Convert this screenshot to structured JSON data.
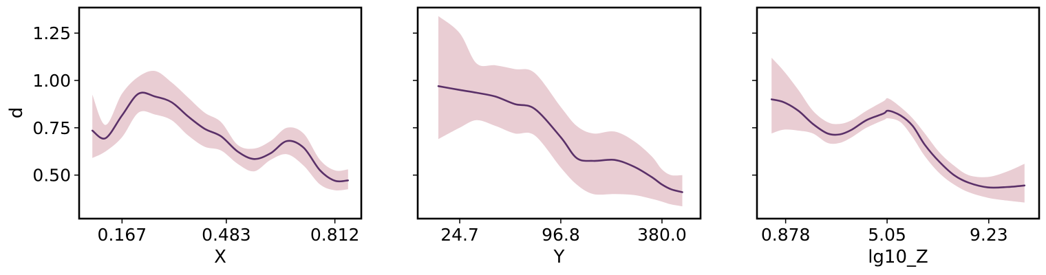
{
  "figure": {
    "ylabel": "d",
    "yticks": [
      "0.50",
      "0.75",
      "1.00",
      "1.25"
    ],
    "ytick_values": [
      0.5,
      0.75,
      1.0,
      1.25
    ],
    "ylim": [
      0.27,
      1.385
    ],
    "line_color": "#5a3068",
    "band_color": "#e9cdd3"
  },
  "chart_data": [
    {
      "type": "line",
      "xlabel": "X",
      "x_scale": "linear",
      "xlim": [
        0.037,
        0.892
      ],
      "xticks": [
        "0.167",
        "0.483",
        "0.812"
      ],
      "xtick_values": [
        0.167,
        0.483,
        0.812
      ],
      "grid": false,
      "series": [
        {
          "x": [
            0.077,
            0.117,
            0.167,
            0.217,
            0.267,
            0.317,
            0.367,
            0.417,
            0.467,
            0.517,
            0.567,
            0.617,
            0.667,
            0.717,
            0.767,
            0.812,
            0.852
          ],
          "y": [
            0.735,
            0.695,
            0.815,
            0.93,
            0.915,
            0.885,
            0.81,
            0.745,
            0.705,
            0.625,
            0.585,
            0.615,
            0.68,
            0.645,
            0.525,
            0.47,
            0.472
          ],
          "lower": [
            0.59,
            0.625,
            0.7,
            0.83,
            0.82,
            0.79,
            0.71,
            0.65,
            0.63,
            0.56,
            0.52,
            0.58,
            0.61,
            0.55,
            0.45,
            0.42,
            0.425
          ],
          "upper": [
            0.925,
            0.765,
            0.93,
            1.02,
            1.05,
            0.99,
            0.91,
            0.83,
            0.78,
            0.66,
            0.64,
            0.68,
            0.75,
            0.72,
            0.58,
            0.525,
            0.53
          ]
        }
      ]
    },
    {
      "type": "line",
      "xlabel": "Y",
      "x_scale": "log",
      "xlim": [
        14.0,
        640.0
      ],
      "xticks": [
        "24.7",
        "96.8",
        "380.0"
      ],
      "xtick_values": [
        24.7,
        96.8,
        380.0
      ],
      "grid": false,
      "series": [
        {
          "x": [
            18.5,
            24.7,
            31,
            40,
            52,
            68,
            96.8,
            120,
            150,
            200,
            260,
            330,
            380,
            430,
            500
          ],
          "y": [
            0.97,
            0.95,
            0.935,
            0.915,
            0.875,
            0.85,
            0.7,
            0.59,
            0.575,
            0.58,
            0.545,
            0.49,
            0.45,
            0.425,
            0.41
          ],
          "lower": [
            0.69,
            0.75,
            0.79,
            0.76,
            0.72,
            0.71,
            0.54,
            0.45,
            0.4,
            0.4,
            0.395,
            0.375,
            0.36,
            0.345,
            0.335
          ],
          "upper": [
            1.34,
            1.25,
            1.09,
            1.08,
            1.06,
            1.04,
            0.86,
            0.76,
            0.72,
            0.73,
            0.68,
            0.6,
            0.53,
            0.5,
            0.5
          ]
        }
      ]
    },
    {
      "type": "line",
      "xlabel": "lg10_Z",
      "x_scale": "linear",
      "xlim": [
        -0.3,
        11.3
      ],
      "xticks": [
        "0.878",
        "5.05",
        "9.23"
      ],
      "xtick_values": [
        0.878,
        5.05,
        9.23
      ],
      "grid": false,
      "series": [
        {
          "x": [
            0.3,
            0.8,
            1.4,
            2.0,
            2.6,
            3.1,
            3.6,
            4.2,
            4.9,
            5.1,
            5.6,
            6.1,
            6.6,
            7.2,
            7.8,
            8.4,
            9.2,
            10.0,
            10.7
          ],
          "y": [
            0.9,
            0.885,
            0.84,
            0.77,
            0.72,
            0.715,
            0.74,
            0.79,
            0.825,
            0.84,
            0.815,
            0.76,
            0.66,
            0.57,
            0.5,
            0.46,
            0.435,
            0.437,
            0.445
          ],
          "lower": [
            0.72,
            0.74,
            0.735,
            0.72,
            0.67,
            0.67,
            0.7,
            0.75,
            0.79,
            0.8,
            0.78,
            0.7,
            0.6,
            0.51,
            0.45,
            0.41,
            0.38,
            0.365,
            0.355
          ],
          "upper": [
            1.12,
            1.05,
            0.95,
            0.84,
            0.78,
            0.77,
            0.79,
            0.84,
            0.89,
            0.905,
            0.86,
            0.8,
            0.72,
            0.62,
            0.55,
            0.5,
            0.49,
            0.52,
            0.56
          ]
        }
      ]
    }
  ]
}
